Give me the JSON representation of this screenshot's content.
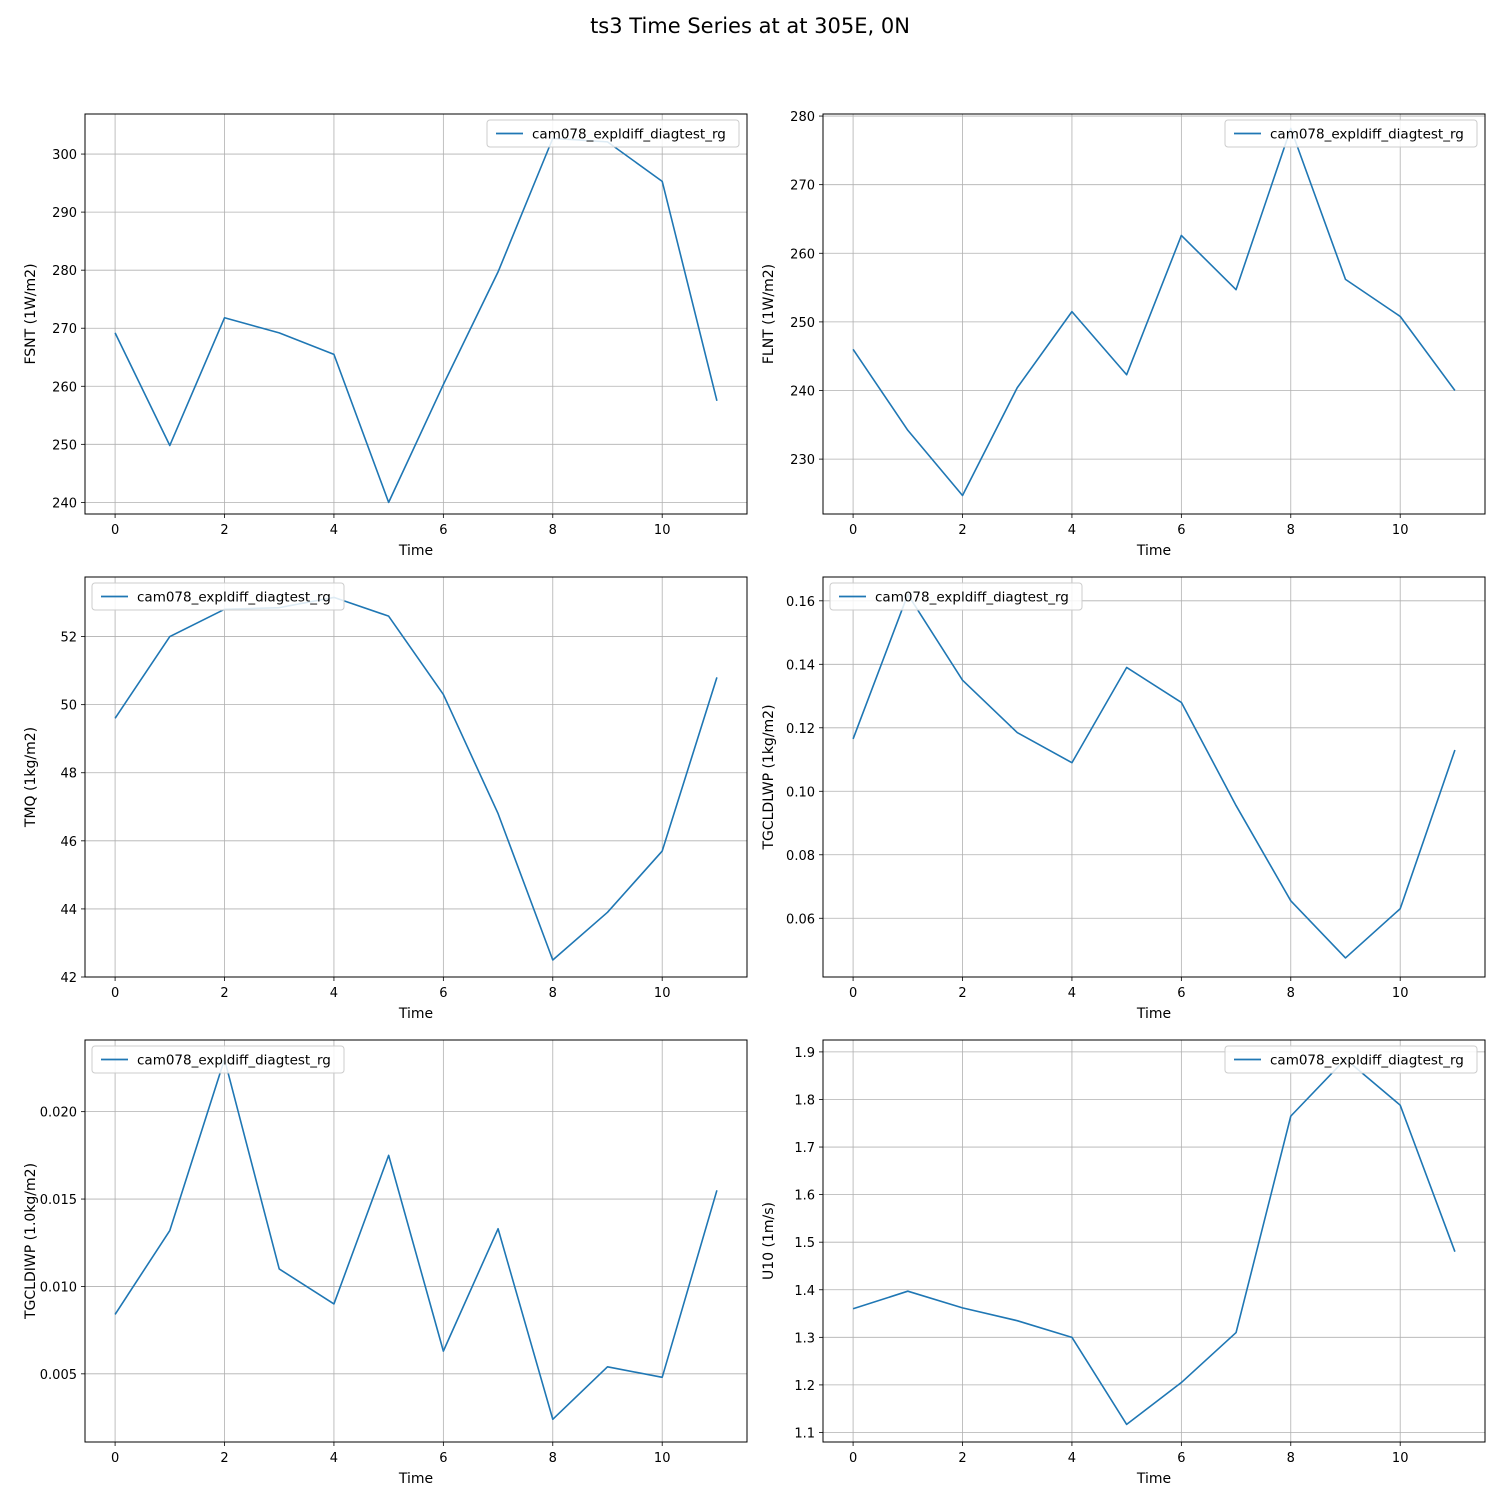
{
  "figure": {
    "title": "ts3 Time Series at at 305E, 0N",
    "line_color": "#1f77b4",
    "grid_color": "#b0b0b0"
  },
  "chart_data": [
    {
      "type": "line",
      "xlabel": "Time",
      "ylabel": "FSNT (1W/m2)",
      "x": [
        0,
        1,
        2,
        3,
        4,
        5,
        6,
        7,
        8,
        9,
        10,
        11
      ],
      "xlim": [
        -0.55,
        11.55
      ],
      "ylim": [
        306.9,
        238.0
      ],
      "xticks": [
        0,
        2,
        4,
        6,
        8,
        10
      ],
      "yticks": [
        240,
        250,
        260,
        270,
        280,
        290,
        300
      ],
      "ytick_labels": [
        "240",
        "250",
        "260",
        "270",
        "280",
        "290",
        "300"
      ],
      "legend_loc": "upper right",
      "grid": true,
      "series": [
        {
          "name": "cam078_expldiff_diagtest_rg",
          "values": [
            269.2,
            249.8,
            271.8,
            269.2,
            265.5,
            240.0,
            260.3,
            279.7,
            302.7,
            302.1,
            295.3,
            257.5
          ]
        }
      ]
    },
    {
      "type": "line",
      "xlabel": "Time",
      "ylabel": "FLNT (1W/m2)",
      "x": [
        0,
        1,
        2,
        3,
        4,
        5,
        6,
        7,
        8,
        9,
        10,
        11
      ],
      "xlim": [
        -0.55,
        11.55
      ],
      "ylim": [
        280.3,
        222.0
      ],
      "xticks": [
        0,
        2,
        4,
        6,
        8,
        10
      ],
      "yticks": [
        230,
        240,
        250,
        260,
        270,
        280
      ],
      "ytick_labels": [
        "230",
        "240",
        "250",
        "260",
        "270",
        "280"
      ],
      "legend_loc": "upper right",
      "grid": true,
      "series": [
        {
          "name": "cam078_expldiff_diagtest_rg",
          "values": [
            246.0,
            234.2,
            224.7,
            240.4,
            251.5,
            242.3,
            262.6,
            254.7,
            278.2,
            256.2,
            250.8,
            240.0
          ]
        }
      ]
    },
    {
      "type": "line",
      "xlabel": "Time",
      "ylabel": "TMQ (1kg/m2)",
      "x": [
        0,
        1,
        2,
        3,
        4,
        5,
        6,
        7,
        8,
        9,
        10,
        11
      ],
      "xlim": [
        -0.55,
        11.55
      ],
      "ylim": [
        53.75,
        42.0
      ],
      "xticks": [
        0,
        2,
        4,
        6,
        8,
        10
      ],
      "yticks": [
        42,
        44,
        46,
        48,
        50,
        52
      ],
      "ytick_labels": [
        "42",
        "44",
        "46",
        "48",
        "50",
        "52"
      ],
      "legend_loc": "upper left",
      "grid": true,
      "series": [
        {
          "name": "cam078_expldiff_diagtest_rg",
          "values": [
            49.6,
            52.0,
            52.8,
            52.85,
            53.15,
            52.6,
            50.3,
            46.8,
            42.5,
            43.9,
            45.7,
            50.8
          ]
        }
      ]
    },
    {
      "type": "line",
      "xlabel": "Time",
      "ylabel": "TGCLDLWP (1kg/m2)",
      "x": [
        0,
        1,
        2,
        3,
        4,
        5,
        6,
        7,
        8,
        9,
        10,
        11
      ],
      "xlim": [
        -0.55,
        11.55
      ],
      "ylim": [
        0.1675,
        0.0415
      ],
      "xticks": [
        0,
        2,
        4,
        6,
        8,
        10
      ],
      "yticks": [
        0.06,
        0.08,
        0.1,
        0.12,
        0.14,
        0.16
      ],
      "ytick_labels": [
        "0.06",
        "0.08",
        "0.10",
        "0.12",
        "0.14",
        "0.16"
      ],
      "legend_loc": "upper left",
      "grid": true,
      "series": [
        {
          "name": "cam078_expldiff_diagtest_rg",
          "values": [
            0.1165,
            0.162,
            0.135,
            0.1185,
            0.109,
            0.139,
            0.128,
            0.0955,
            0.0655,
            0.0475,
            0.063,
            0.113
          ]
        }
      ]
    },
    {
      "type": "line",
      "xlabel": "Time",
      "ylabel": "TGCLDIWP (1.0kg/m2)",
      "x": [
        0,
        1,
        2,
        3,
        4,
        5,
        6,
        7,
        8,
        9,
        10,
        11
      ],
      "xlim": [
        -0.55,
        11.55
      ],
      "ylim": [
        0.0241,
        0.0011
      ],
      "xticks": [
        0,
        2,
        4,
        6,
        8,
        10
      ],
      "yticks": [
        0.005,
        0.01,
        0.015,
        0.02
      ],
      "ytick_labels": [
        "0.005",
        "0.010",
        "0.015",
        "0.020"
      ],
      "legend_loc": "upper left",
      "grid": true,
      "series": [
        {
          "name": "cam078_expldiff_diagtest_rg",
          "values": [
            0.0084,
            0.0132,
            0.023,
            0.011,
            0.009,
            0.0175,
            0.0063,
            0.0133,
            0.0024,
            0.0054,
            0.0048,
            0.0155
          ]
        }
      ]
    },
    {
      "type": "line",
      "xlabel": "Time",
      "ylabel": "U10 (1m/s)",
      "x": [
        0,
        1,
        2,
        3,
        4,
        5,
        6,
        7,
        8,
        9,
        10,
        11
      ],
      "xlim": [
        -0.55,
        11.55
      ],
      "ylim": [
        1.925,
        1.08
      ],
      "xticks": [
        0,
        2,
        4,
        6,
        8,
        10
      ],
      "yticks": [
        1.1,
        1.2,
        1.3,
        1.4,
        1.5,
        1.6,
        1.7,
        1.8,
        1.9
      ],
      "ytick_labels": [
        "1.1",
        "1.2",
        "1.3",
        "1.4",
        "1.5",
        "1.6",
        "1.7",
        "1.8",
        "1.9"
      ],
      "legend_loc": "upper right",
      "grid": true,
      "series": [
        {
          "name": "cam078_expldiff_diagtest_rg",
          "values": [
            1.36,
            1.397,
            1.362,
            1.335,
            1.3,
            1.117,
            1.205,
            1.31,
            1.765,
            1.885,
            1.788,
            1.48
          ]
        }
      ]
    }
  ]
}
